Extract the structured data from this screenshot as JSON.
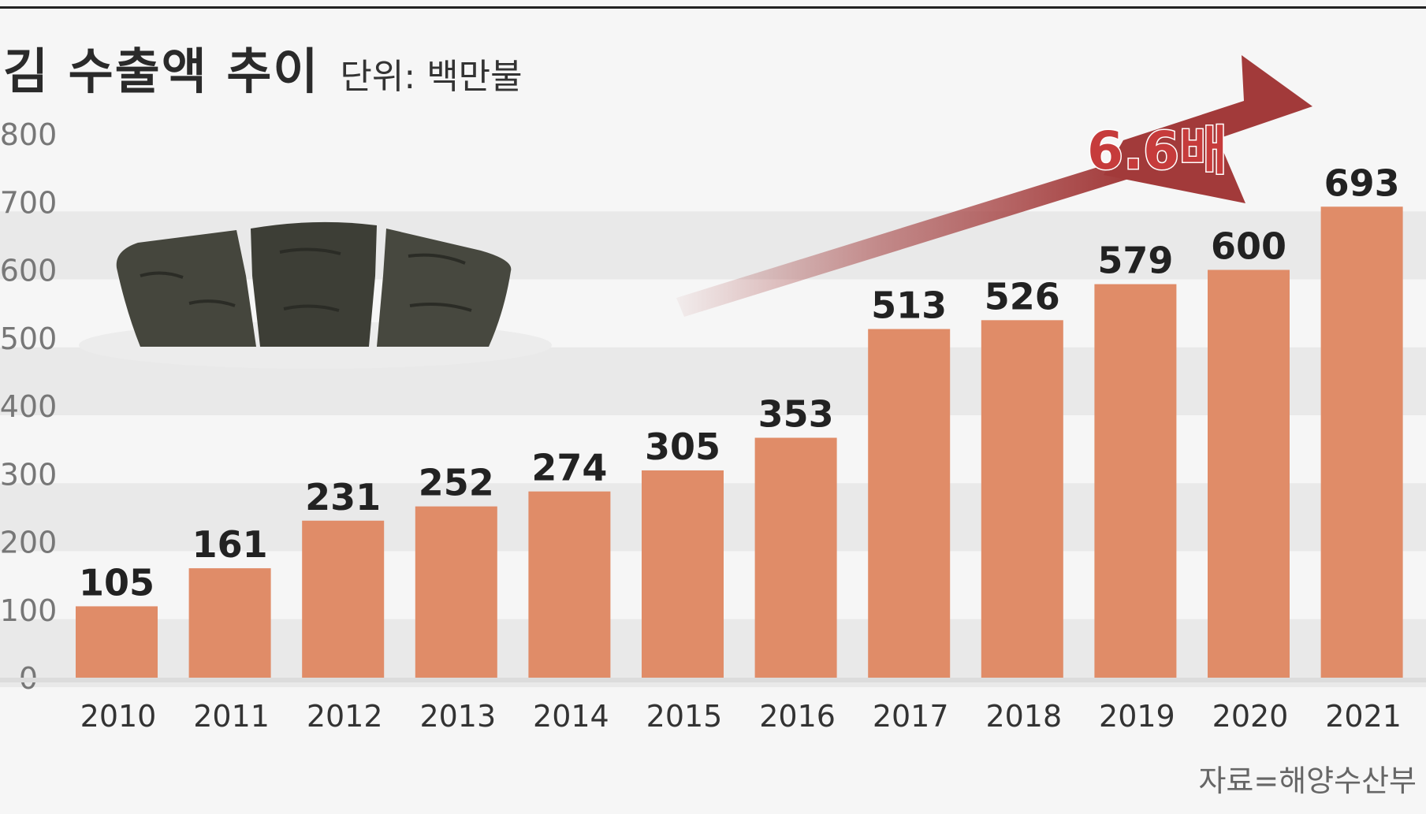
{
  "header": {
    "title": "김 수출액 추이",
    "unit": "단위: 백만불"
  },
  "source": "자료=해양수산부",
  "annotation": "6.6배",
  "colors": {
    "bar": "#e08c68",
    "arrow": "#a23a3a",
    "band": "#e9e9e9",
    "background": "#f6f6f6"
  },
  "chart_data": {
    "type": "bar",
    "title": "김 수출액 추이",
    "subtitle": "단위: 백만불",
    "categories": [
      "2010",
      "2011",
      "2012",
      "2013",
      "2014",
      "2015",
      "2016",
      "2017",
      "2018",
      "2019",
      "2020",
      "2021"
    ],
    "values": [
      105,
      161,
      231,
      252,
      274,
      305,
      353,
      513,
      526,
      579,
      600,
      693
    ],
    "yticks": [
      0,
      100,
      200,
      300,
      400,
      500,
      600,
      700,
      800
    ],
    "ylim": [
      0,
      800
    ],
    "xlabel": "",
    "ylabel": "",
    "grid": "alternating horizontal bands",
    "legend": "none"
  }
}
